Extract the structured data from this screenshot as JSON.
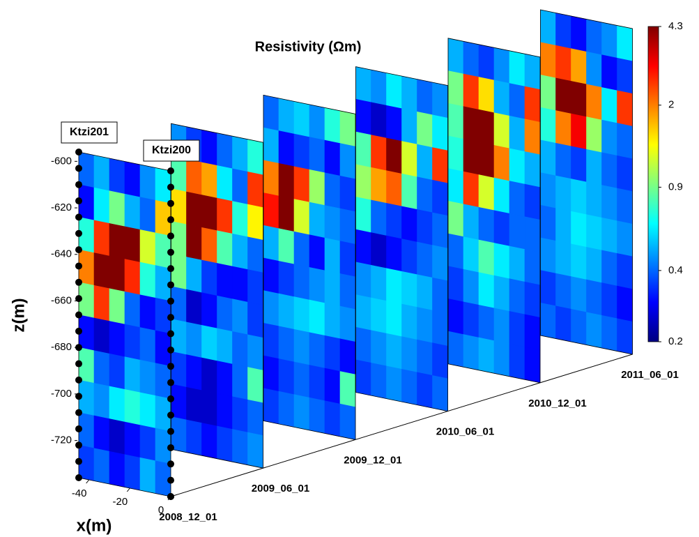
{
  "chart_data": {
    "type": "slices",
    "title": "Resistivity (Ωm)",
    "zlabel": "z(m)",
    "xlabel": "x(m)",
    "zlim": [
      -736,
      -596
    ],
    "zticks": [
      -600,
      -620,
      -640,
      -660,
      -680,
      -700,
      -720
    ],
    "xlim": [
      -45,
      0
    ],
    "xticks": [
      -40,
      -20,
      0
    ],
    "wells": [
      "Ktzi201",
      "Ktzi200"
    ],
    "colormap": "jet",
    "log_scale": true,
    "clim": [
      0.2,
      4.3
    ],
    "colorbar_ticks": [
      0.2,
      0.4,
      0.9,
      2,
      4.3
    ],
    "slices": [
      {
        "date": "2008_12_01",
        "values": [
          [
            0.4,
            0.5,
            0.35,
            0.3,
            0.45,
            0.6
          ],
          [
            0.3,
            0.6,
            0.9,
            0.5,
            0.4,
            1.6
          ],
          [
            0.7,
            2.5,
            4.3,
            4.3,
            1.2,
            0.8
          ],
          [
            2.0,
            4.3,
            4.3,
            2.6,
            0.7,
            0.5
          ],
          [
            0.9,
            2.5,
            0.9,
            0.4,
            0.3,
            0.35
          ],
          [
            0.3,
            0.25,
            0.3,
            0.35,
            0.4,
            0.3
          ],
          [
            0.8,
            0.4,
            0.35,
            0.5,
            0.45,
            0.4
          ],
          [
            0.5,
            0.45,
            0.6,
            0.7,
            0.6,
            0.5
          ],
          [
            0.4,
            0.3,
            0.25,
            0.3,
            0.35,
            0.45
          ],
          [
            0.35,
            0.4,
            0.3,
            0.35,
            0.5,
            0.4
          ]
        ]
      },
      {
        "date": "2009_06_01",
        "values": [
          [
            0.45,
            0.35,
            0.3,
            0.4,
            0.5,
            0.7
          ],
          [
            0.8,
            2.2,
            1.8,
            0.6,
            0.4,
            2.5
          ],
          [
            1.5,
            4.3,
            4.3,
            2.5,
            0.7,
            1.4
          ],
          [
            0.9,
            4.3,
            2.2,
            0.8,
            0.5,
            0.4
          ],
          [
            0.9,
            0.5,
            0.35,
            0.3,
            0.3,
            0.35
          ],
          [
            0.4,
            0.25,
            0.3,
            0.4,
            0.45,
            0.35
          ],
          [
            0.5,
            0.45,
            0.55,
            0.5,
            0.4,
            0.45
          ],
          [
            0.35,
            0.3,
            0.25,
            0.3,
            0.4,
            0.8
          ],
          [
            0.3,
            0.25,
            0.25,
            0.3,
            0.35,
            0.4
          ],
          [
            0.4,
            0.35,
            0.3,
            0.35,
            0.4,
            0.45
          ]
        ]
      },
      {
        "date": "2009_12_01",
        "values": [
          [
            0.4,
            0.5,
            0.55,
            0.45,
            0.7,
            0.9
          ],
          [
            0.5,
            0.3,
            0.35,
            0.4,
            0.3,
            0.45
          ],
          [
            2.0,
            4.3,
            2.5,
            1.0,
            0.4,
            0.35
          ],
          [
            2.8,
            4.3,
            1.2,
            0.5,
            0.45,
            0.4
          ],
          [
            0.5,
            0.8,
            0.4,
            0.3,
            0.5,
            0.35
          ],
          [
            0.3,
            0.35,
            0.4,
            0.45,
            0.5,
            0.4
          ],
          [
            0.45,
            0.5,
            0.55,
            0.6,
            0.5,
            0.45
          ],
          [
            0.35,
            0.4,
            0.45,
            0.4,
            0.35,
            0.3
          ],
          [
            0.3,
            0.35,
            0.4,
            0.35,
            0.3,
            0.8
          ],
          [
            0.35,
            0.4,
            0.45,
            0.4,
            0.35,
            0.4
          ]
        ]
      },
      {
        "date": "2010_06_01",
        "values": [
          [
            0.5,
            0.45,
            0.6,
            0.5,
            0.4,
            0.45
          ],
          [
            0.3,
            0.25,
            0.3,
            0.5,
            0.9,
            0.6
          ],
          [
            0.8,
            2.5,
            4.3,
            1.2,
            0.5,
            2.5
          ],
          [
            1.0,
            1.8,
            2.2,
            0.8,
            0.4,
            0.35
          ],
          [
            0.7,
            0.4,
            0.35,
            0.3,
            0.35,
            0.4
          ],
          [
            0.3,
            0.25,
            0.3,
            0.35,
            0.4,
            0.45
          ],
          [
            0.45,
            0.5,
            0.6,
            0.55,
            0.5,
            0.4
          ],
          [
            0.5,
            0.55,
            0.6,
            0.5,
            0.45,
            0.4
          ],
          [
            0.4,
            0.45,
            0.5,
            0.45,
            0.4,
            0.35
          ],
          [
            0.35,
            0.4,
            0.45,
            0.4,
            0.35,
            0.4
          ]
        ]
      },
      {
        "date": "2010_12_01",
        "values": [
          [
            0.5,
            0.4,
            0.35,
            0.45,
            0.6,
            0.5
          ],
          [
            0.9,
            2.5,
            1.5,
            0.5,
            0.4,
            2.5
          ],
          [
            0.8,
            4.3,
            4.3,
            1.2,
            0.5,
            2.0
          ],
          [
            0.7,
            4.3,
            4.3,
            2.0,
            0.6,
            0.5
          ],
          [
            0.6,
            2.5,
            1.2,
            0.6,
            0.4,
            0.35
          ],
          [
            0.9,
            0.5,
            0.4,
            0.35,
            0.4,
            0.4
          ],
          [
            0.4,
            0.55,
            0.8,
            0.6,
            0.5,
            0.4
          ],
          [
            0.35,
            0.45,
            0.6,
            0.5,
            0.4,
            0.35
          ],
          [
            0.3,
            0.35,
            0.4,
            0.45,
            0.35,
            0.3
          ],
          [
            0.4,
            0.45,
            0.5,
            0.45,
            0.35,
            0.3
          ]
        ]
      },
      {
        "date": "2011_06_01",
        "values": [
          [
            0.5,
            0.35,
            0.3,
            0.4,
            0.45,
            0.6
          ],
          [
            2.0,
            2.5,
            1.8,
            0.45,
            0.3,
            0.35
          ],
          [
            0.9,
            4.3,
            4.3,
            2.0,
            0.6,
            2.5
          ],
          [
            0.7,
            2.0,
            3.0,
            1.0,
            0.45,
            0.4
          ],
          [
            0.5,
            0.4,
            0.35,
            0.5,
            0.4,
            0.35
          ],
          [
            0.45,
            0.5,
            0.55,
            0.5,
            0.45,
            0.4
          ],
          [
            0.4,
            0.5,
            0.6,
            0.55,
            0.5,
            0.45
          ],
          [
            0.45,
            0.5,
            0.55,
            0.5,
            0.4,
            0.35
          ],
          [
            0.35,
            0.4,
            0.45,
            0.4,
            0.35,
            0.3
          ],
          [
            0.4,
            0.35,
            0.4,
            0.45,
            0.4,
            0.35
          ]
        ]
      }
    ]
  }
}
